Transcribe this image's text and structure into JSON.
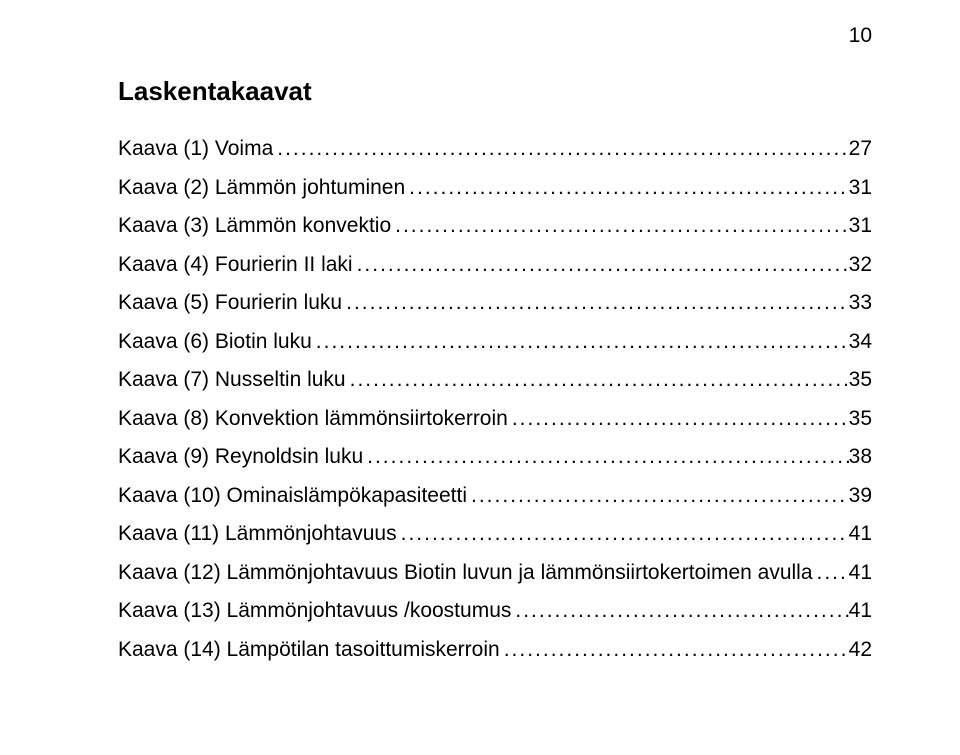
{
  "page_number_top": "10",
  "heading": "Laskentakaavat",
  "leader_char": ".",
  "entries": [
    {
      "label": "Kaava (1) Voima",
      "page": "27"
    },
    {
      "label": "Kaava (2) Lämmön johtuminen",
      "page": "31"
    },
    {
      "label": "Kaava (3) Lämmön konvektio",
      "page": "31"
    },
    {
      "label": "Kaava (4) Fourierin II laki",
      "page": "32"
    },
    {
      "label": "Kaava (5) Fourierin luku",
      "page": "33"
    },
    {
      "label": "Kaava (6) Biotin luku",
      "page": "34"
    },
    {
      "label": "Kaava (7) Nusseltin luku",
      "page": "35"
    },
    {
      "label": "Kaava (8) Konvektion lämmönsiirtokerroin",
      "page": "35"
    },
    {
      "label": "Kaava (9) Reynoldsin luku",
      "page": "38"
    },
    {
      "label": "Kaava (10) Ominaislämpökapasiteetti",
      "page": "39"
    },
    {
      "label": "Kaava (11) Lämmönjohtavuus",
      "page": "41"
    },
    {
      "label": "Kaava (12)  Lämmönjohtavuus Biotin luvun ja lämmönsiirtokertoimen avulla",
      "page": "41"
    },
    {
      "label": "Kaava (13) Lämmönjohtavuus /koostumus",
      "page": "41"
    },
    {
      "label": "Kaava (14) Lämpötilan tasoittumiskerroin",
      "page": "42"
    }
  ]
}
